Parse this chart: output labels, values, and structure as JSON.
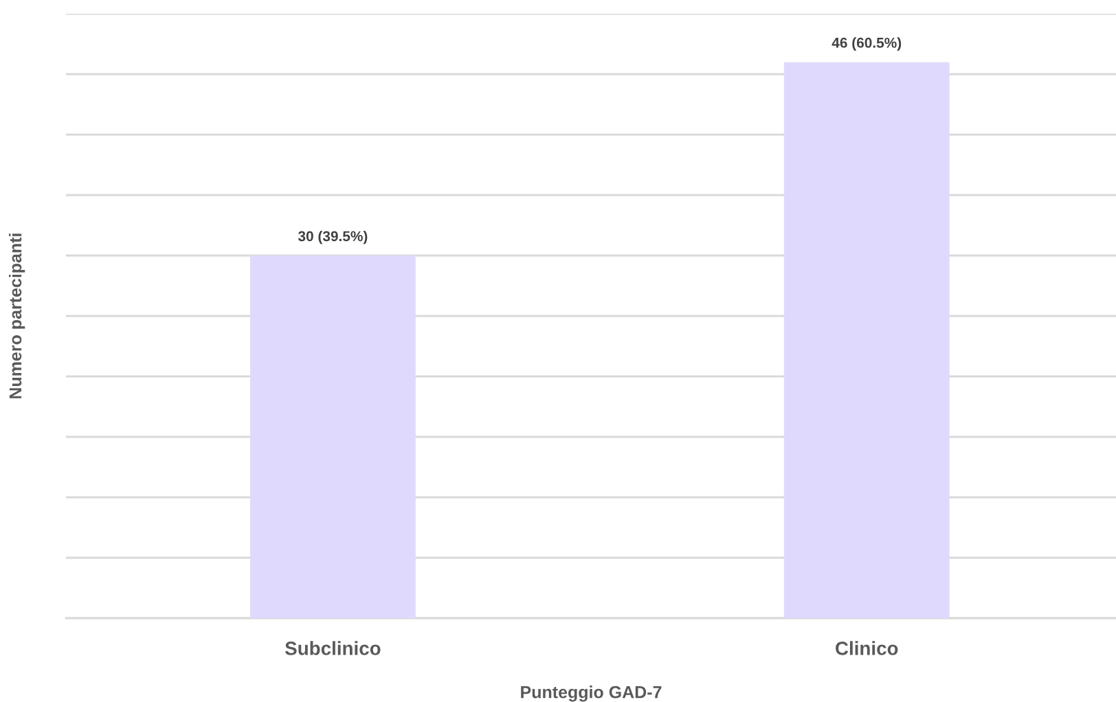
{
  "chart_data": {
    "type": "bar",
    "xlabel": "Punteggio GAD-7",
    "ylabel": "Numero partecipanti",
    "categories": [
      "Subclinico",
      "Clinico"
    ],
    "values": [
      30,
      46
    ],
    "value_labels": [
      "30 (39.5%)",
      "46 (60.5%)"
    ],
    "color": "#dfdafd",
    "ylim": [
      0,
      50
    ],
    "yticks": [
      {
        "value": 0,
        "label": null
      },
      {
        "value": 5,
        "label": null
      },
      {
        "value": 10,
        "label": null
      },
      {
        "value": 15,
        "label": null
      },
      {
        "value": 20,
        "label": null
      },
      {
        "value": 25,
        "label": null
      },
      {
        "value": 30,
        "label": null
      },
      {
        "value": 35,
        "label": null
      },
      {
        "value": 40,
        "label": null
      },
      {
        "value": 45,
        "label": null
      },
      {
        "value": 50,
        "label": null
      }
    ],
    "grid": "y",
    "tick_labels": "x",
    "legend": false
  }
}
